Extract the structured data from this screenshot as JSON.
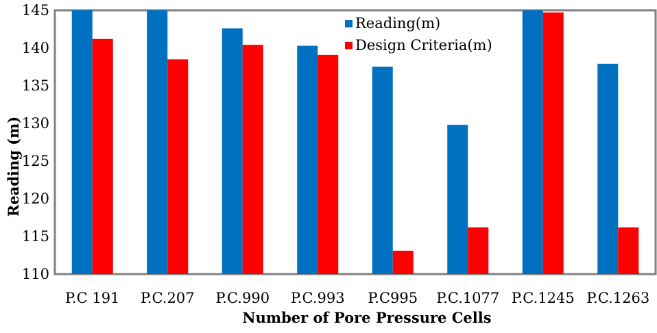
{
  "chart_data": {
    "type": "bar",
    "title": "",
    "xlabel": "Number of Pore Pressure Cells",
    "ylabel": "Reading (m)",
    "ylim": [
      110,
      145
    ],
    "yticks": [
      110,
      115,
      120,
      125,
      130,
      135,
      140,
      145
    ],
    "grid": false,
    "legend_position": "top-right",
    "categories": [
      "P.C 191",
      "P.C.207",
      "P.C.990",
      "P.C.993",
      "P.C995",
      "P.C.1077",
      "P.C.1245",
      "P.C.1263"
    ],
    "series": [
      {
        "name": "Reading(m)",
        "color": "#0070C0",
        "values": [
          145,
          145,
          142.6,
          140.3,
          137.5,
          129.8,
          145,
          137.9
        ]
      },
      {
        "name": "Design Criteria(m)",
        "color": "#FF0000",
        "values": [
          141.2,
          138.5,
          140.4,
          139.1,
          113.1,
          116.2,
          144.7,
          116.2
        ]
      }
    ]
  }
}
